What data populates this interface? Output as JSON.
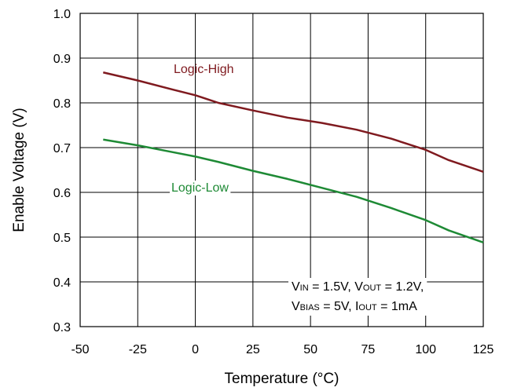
{
  "chart_data": {
    "type": "line",
    "title": "",
    "xlabel": "Temperature (°C)",
    "ylabel": "Enable Voltage (V)",
    "xlim": [
      -50,
      125
    ],
    "ylim": [
      0.3,
      1.0
    ],
    "xticks": [
      -50,
      -25,
      0,
      25,
      50,
      75,
      100,
      125
    ],
    "yticks": [
      0.3,
      0.4,
      0.5,
      0.6,
      0.7,
      0.8,
      0.9,
      1.0
    ],
    "x_tick_labels": [
      "-50",
      "-25",
      "0",
      "25",
      "50",
      "75",
      "100",
      "125"
    ],
    "y_tick_labels": [
      "0.3",
      "0.4",
      "0.5",
      "0.6",
      "0.7",
      "0.8",
      "0.9",
      "1.0"
    ],
    "grid": true,
    "series": [
      {
        "name": "Logic-High",
        "color": "#7f1a1f",
        "x": [
          -40,
          -25,
          -10,
          0,
          10,
          25,
          40,
          55,
          70,
          85,
          100,
          110,
          125
        ],
        "y": [
          0.868,
          0.85,
          0.83,
          0.817,
          0.8,
          0.783,
          0.767,
          0.755,
          0.74,
          0.72,
          0.695,
          0.672,
          0.646
        ]
      },
      {
        "name": "Logic-Low",
        "color": "#1e8a35",
        "x": [
          -40,
          -25,
          -10,
          0,
          10,
          25,
          40,
          55,
          70,
          85,
          100,
          110,
          125
        ],
        "y": [
          0.718,
          0.705,
          0.69,
          0.68,
          0.668,
          0.648,
          0.63,
          0.61,
          0.59,
          0.565,
          0.538,
          0.515,
          0.488
        ]
      }
    ],
    "annotation": {
      "line1": {
        "v1": "V",
        "v1_sub": "IN",
        "v1_rest": " = 1.5V, V",
        "v2_sub": "OUT",
        "v2_rest": " = 1.2V,"
      },
      "line2": {
        "v1": "V",
        "v1_sub": "BIAS",
        "v1_rest": " = 5V, I",
        "v2_sub": "OUT",
        "v2_rest": " = 1mA"
      }
    }
  }
}
